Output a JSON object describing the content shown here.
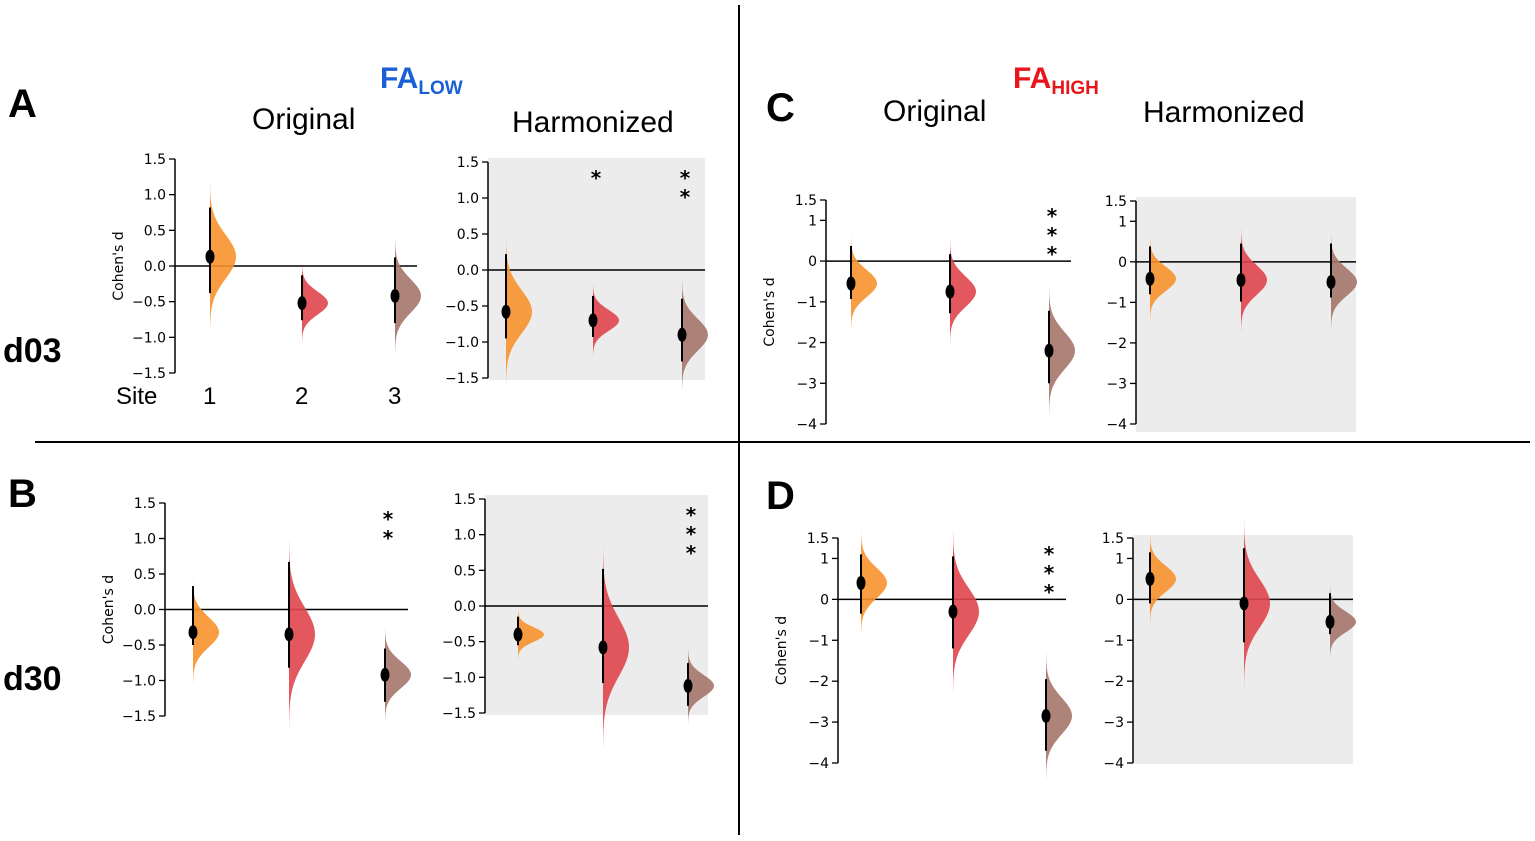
{
  "labels": {
    "panel_A": "A",
    "panel_B": "B",
    "panel_C": "C",
    "panel_D": "D",
    "row_d03": "d03",
    "row_d30": "d30",
    "original": "Original",
    "harmonized": "Harmonized",
    "fa_low_main": "FA",
    "fa_low_sub": "LOW",
    "fa_high_main": "FA",
    "fa_high_sub": "HIGH",
    "site": "Site",
    "site_1": "1",
    "site_2": "2",
    "site_3": "3"
  },
  "colors": {
    "site1": "#f7922e",
    "site2": "#e0454c",
    "site3": "#a4766c",
    "fa_low": "#1a5fd6",
    "fa_high": "#e8161b",
    "harmonized_bg": "#ececec"
  },
  "chart_data": [
    {
      "id": "A-original",
      "type": "violin",
      "panel": "A",
      "column": "Original",
      "ylabel": "Cohen's d",
      "ylim": [
        -1.5,
        1.5
      ],
      "yticks": [
        "1.5",
        "1.0",
        "0.5",
        "0.0",
        "−0.5",
        "−1.0",
        "−1.5"
      ],
      "ytick_values": [
        1.5,
        1.0,
        0.5,
        0.0,
        -0.5,
        -1.0,
        -1.5
      ],
      "sites": [
        1,
        2,
        3
      ],
      "means": [
        0.13,
        -0.52,
        -0.42
      ],
      "ci": [
        [
          -0.38,
          0.82
        ],
        [
          -0.76,
          -0.13
        ],
        [
          -0.8,
          0.12
        ]
      ],
      "stars": [
        "",
        "",
        ""
      ],
      "shaded": false
    },
    {
      "id": "A-harmonized",
      "type": "violin",
      "panel": "A",
      "column": "Harmonized",
      "ylabel": "",
      "ylim": [
        -1.5,
        1.5
      ],
      "yticks": [
        "1.5",
        "1.0",
        "0.5",
        "0.0",
        "−0.5",
        "−1.0",
        "−1.5"
      ],
      "ytick_values": [
        1.5,
        1.0,
        0.5,
        0.0,
        -0.5,
        -1.0,
        -1.5
      ],
      "sites": [
        1,
        2,
        3
      ],
      "means": [
        -0.58,
        -0.7,
        -0.9
      ],
      "ci": [
        [
          -0.95,
          0.22
        ],
        [
          -0.93,
          -0.36
        ],
        [
          -1.27,
          -0.4
        ]
      ],
      "stars": [
        "",
        "*",
        "**"
      ],
      "shaded": true
    },
    {
      "id": "B-original",
      "type": "violin",
      "panel": "B",
      "column": "Original",
      "ylabel": "Cohen's d",
      "ylim": [
        -1.5,
        1.5
      ],
      "yticks": [
        "1.5",
        "1.0",
        "0.5",
        "0.0",
        "−0.5",
        "−1.0",
        "−1.5"
      ],
      "ytick_values": [
        1.5,
        1.0,
        0.5,
        0.0,
        -0.5,
        -1.0,
        -1.5
      ],
      "sites": [
        1,
        2,
        3
      ],
      "means": [
        -0.32,
        -0.35,
        -0.92
      ],
      "ci": [
        [
          -0.5,
          0.33
        ],
        [
          -0.82,
          0.67
        ],
        [
          -1.3,
          -0.55
        ]
      ],
      "stars": [
        "",
        "",
        "**"
      ],
      "shaded": false
    },
    {
      "id": "B-harmonized",
      "type": "violin",
      "panel": "B",
      "column": "Harmonized",
      "ylabel": "",
      "ylim": [
        -1.5,
        1.5
      ],
      "yticks": [
        "1.5",
        "1.0",
        "0.5",
        "0.0",
        "−0.5",
        "−1.0",
        "−1.5"
      ],
      "ytick_values": [
        1.5,
        1.0,
        0.5,
        0.0,
        -0.5,
        -1.0,
        -1.5
      ],
      "sites": [
        1,
        2,
        3
      ],
      "means": [
        -0.4,
        -0.58,
        -1.12
      ],
      "ci": [
        [
          -0.55,
          -0.15
        ],
        [
          -1.08,
          0.52
        ],
        [
          -1.4,
          -0.8
        ]
      ],
      "stars": [
        "",
        "",
        "***"
      ],
      "shaded": true
    },
    {
      "id": "C-original",
      "type": "violin",
      "panel": "C",
      "column": "Original",
      "ylabel": "Cohen's d",
      "ylim": [
        -4,
        1.5
      ],
      "yticks": [
        "1.5",
        "1",
        "0",
        "−1",
        "−2",
        "−3",
        "−4"
      ],
      "ytick_values": [
        1.5,
        1,
        0,
        -1,
        -2,
        -3,
        -4
      ],
      "sites": [
        1,
        2,
        3
      ],
      "means": [
        -0.55,
        -0.75,
        -2.2
      ],
      "ci": [
        [
          -0.93,
          0.37
        ],
        [
          -1.28,
          0.17
        ],
        [
          -3.0,
          -1.22
        ]
      ],
      "stars": [
        "",
        "",
        "***"
      ],
      "shaded": false
    },
    {
      "id": "C-harmonized",
      "type": "violin",
      "panel": "C",
      "column": "Harmonized",
      "ylabel": "",
      "ylim": [
        -4,
        1.5
      ],
      "yticks": [
        "1.5",
        "1",
        "0",
        "−1",
        "−2",
        "−3",
        "−4"
      ],
      "ytick_values": [
        1.5,
        1,
        0,
        -1,
        -2,
        -3,
        -4
      ],
      "sites": [
        1,
        2,
        3
      ],
      "means": [
        -0.42,
        -0.45,
        -0.5
      ],
      "ci": [
        [
          -0.8,
          0.38
        ],
        [
          -0.98,
          0.45
        ],
        [
          -0.88,
          0.45
        ]
      ],
      "stars": [
        "",
        "",
        ""
      ],
      "shaded": true
    },
    {
      "id": "D-original",
      "type": "violin",
      "panel": "D",
      "column": "Original",
      "ylabel": "Cohen's d",
      "ylim": [
        -4,
        1.5
      ],
      "yticks": [
        "1.5",
        "1",
        "0",
        "−1",
        "−2",
        "−3",
        "−4"
      ],
      "ytick_values": [
        1.5,
        1,
        0,
        -1,
        -2,
        -3,
        -4
      ],
      "sites": [
        1,
        2,
        3
      ],
      "means": [
        0.4,
        -0.3,
        -2.85
      ],
      "ci": [
        [
          -0.35,
          1.1
        ],
        [
          -1.2,
          1.05
        ],
        [
          -3.7,
          -1.95
        ]
      ],
      "stars": [
        "",
        "",
        "***"
      ],
      "shaded": false
    },
    {
      "id": "D-harmonized",
      "type": "violin",
      "panel": "D",
      "column": "Harmonized",
      "ylabel": "",
      "ylim": [
        -4,
        1.5
      ],
      "yticks": [
        "1.5",
        "1",
        "0",
        "−1",
        "−2",
        "−3",
        "−4"
      ],
      "ytick_values": [
        1.5,
        1,
        0,
        -1,
        -2,
        -3,
        -4
      ],
      "sites": [
        1,
        2,
        3
      ],
      "means": [
        0.5,
        -0.1,
        -0.55
      ],
      "ci": [
        [
          -0.1,
          1.15
        ],
        [
          -1.05,
          1.25
        ],
        [
          -0.85,
          0.15
        ]
      ],
      "stars": [
        "",
        "",
        ""
      ],
      "shaded": true
    }
  ]
}
